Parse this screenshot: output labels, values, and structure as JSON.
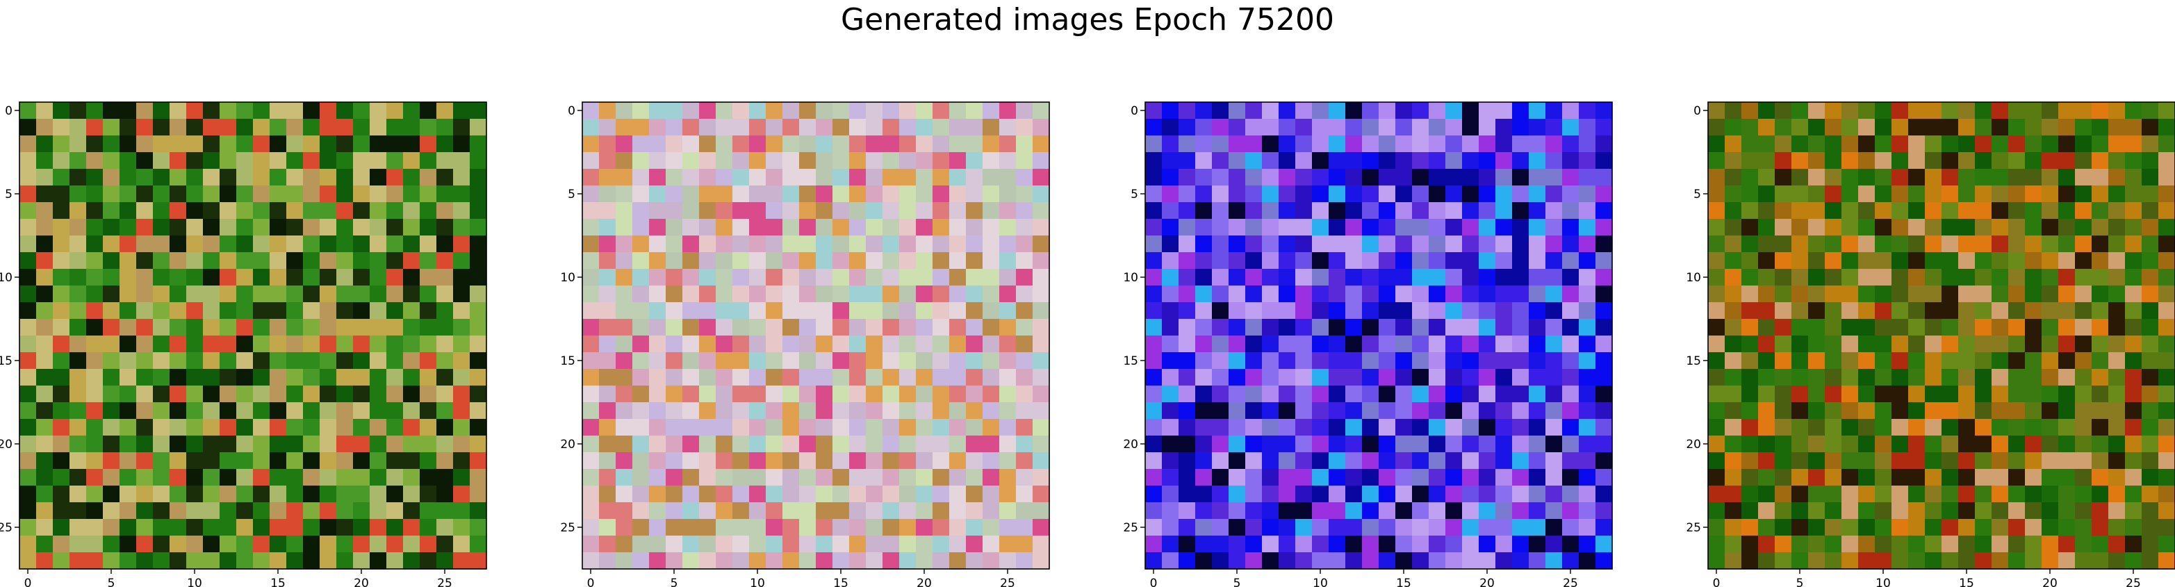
{
  "figure": {
    "title": "Generated images Epoch 75200"
  },
  "chart_data": [
    {
      "type": "heatmap",
      "rendering": "rgb-image",
      "grid": false,
      "grid_size": [
        28,
        28
      ],
      "xlim": [
        -0.5,
        27.5
      ],
      "ylim": [
        27.5,
        -0.5
      ],
      "x_ticks": [
        0,
        5,
        10,
        15,
        20,
        25
      ],
      "y_ticks": [
        0,
        5,
        10,
        15,
        20,
        25
      ],
      "x_tick_labels": [
        "0",
        "5",
        "10",
        "15",
        "20",
        "25"
      ],
      "y_tick_labels": [
        "0",
        "5",
        "10",
        "15",
        "20",
        "25"
      ],
      "palette": [
        "#0f5c0a",
        "#1f7a12",
        "#2e8b1c",
        "#4a9a2a",
        "#7fae3a",
        "#a9b86a",
        "#c9bd77",
        "#b9975a",
        "#0a1a05",
        "#1a2e0a",
        "#d94a2e",
        "#c2a84a"
      ]
    },
    {
      "type": "heatmap",
      "rendering": "rgb-image",
      "grid": false,
      "grid_size": [
        28,
        28
      ],
      "xlim": [
        -0.5,
        27.5
      ],
      "ylim": [
        27.5,
        -0.5
      ],
      "x_ticks": [
        0,
        5,
        10,
        15,
        20,
        25
      ],
      "y_ticks": [
        0,
        5,
        10,
        15,
        20,
        25
      ],
      "x_tick_labels": [
        "0",
        "5",
        "10",
        "15",
        "20",
        "25"
      ],
      "y_tick_labels": [
        "0",
        "5",
        "10",
        "15",
        "20",
        "25"
      ],
      "palette": [
        "#d7c7d9",
        "#c9b3cf",
        "#e4d6dc",
        "#b9c7b0",
        "#d9a6c2",
        "#c7b7e0",
        "#e8c7c9",
        "#bfcfb3",
        "#e07a7a",
        "#d94b8a",
        "#b98a4a",
        "#e0a050",
        "#9fd1d4",
        "#cfe0b0"
      ]
    },
    {
      "type": "heatmap",
      "rendering": "rgb-image",
      "grid": false,
      "grid_size": [
        28,
        28
      ],
      "xlim": [
        -0.5,
        27.5
      ],
      "ylim": [
        27.5,
        -0.5
      ],
      "x_ticks": [
        0,
        5,
        10,
        15,
        20,
        25
      ],
      "y_ticks": [
        0,
        5,
        10,
        15,
        20,
        25
      ],
      "x_tick_labels": [
        "0",
        "5",
        "10",
        "15",
        "20",
        "25"
      ],
      "y_tick_labels": [
        "0",
        "5",
        "10",
        "15",
        "20",
        "25"
      ],
      "palette": [
        "#1a14e6",
        "#0a0af0",
        "#3a1ee8",
        "#6a50e8",
        "#8a6ef0",
        "#b08af0",
        "#5a2ad8",
        "#2a10c0",
        "#0808a0",
        "#c0a0f0",
        "#9a30e0",
        "#2ab0f0",
        "#050530",
        "#7a7ad0"
      ]
    },
    {
      "type": "heatmap",
      "rendering": "rgb-image",
      "grid": false,
      "grid_size": [
        28,
        28
      ],
      "xlim": [
        -0.5,
        27.5
      ],
      "ylim": [
        27.5,
        -0.5
      ],
      "x_ticks": [
        0,
        5,
        10,
        15,
        20,
        25
      ],
      "y_ticks": [
        0,
        5,
        10,
        15,
        20,
        25
      ],
      "x_tick_labels": [
        "0",
        "5",
        "10",
        "15",
        "20",
        "25"
      ],
      "y_tick_labels": [
        "0",
        "5",
        "10",
        "15",
        "20",
        "25"
      ],
      "palette": [
        "#1a6a0a",
        "#2a7a0e",
        "#0e5a06",
        "#3a7a10",
        "#5a7a12",
        "#4a6010",
        "#6a8a1a",
        "#8a7a20",
        "#a06a10",
        "#c08010",
        "#e07a10",
        "#b02a10",
        "#d0a070",
        "#2a1a05"
      ]
    }
  ]
}
